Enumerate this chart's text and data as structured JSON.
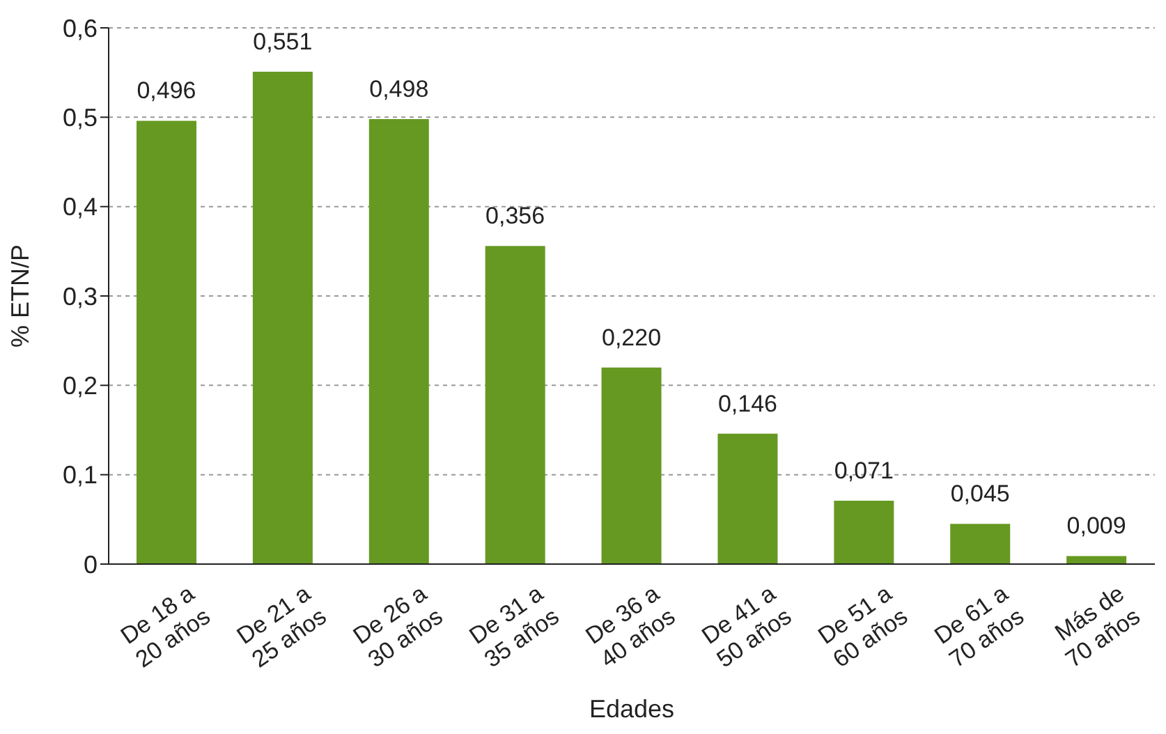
{
  "chart_data": {
    "type": "bar",
    "categories": [
      "De 18 a 20 años",
      "De 21 a 25 años",
      "De 26 a 30 años",
      "De 31 a 35 años",
      "De 36 a 40 años",
      "De 41 a 50 años",
      "De 51 a 60 años",
      "De 61 a 70 años",
      "Más de 70 años"
    ],
    "values": [
      0.496,
      0.551,
      0.498,
      0.356,
      0.22,
      0.146,
      0.071,
      0.045,
      0.009
    ],
    "value_labels": [
      "0,496",
      "0,551",
      "0,498",
      "0,356",
      "0,220",
      "0,146",
      "0,071",
      "0,045",
      "0,009"
    ],
    "color": "#669922",
    "xlabel": "Edades",
    "ylabel": "% ETN/P",
    "ylim": [
      0,
      0.6
    ],
    "yticks": [
      0,
      {
        "value": 0.1,
        "label": "0,1"
      },
      {
        "value": 0.2,
        "label": "0,2"
      },
      {
        "value": 0.3,
        "label": "0,3"
      },
      {
        "value": 0.4,
        "label": "0,4"
      },
      {
        "value": 0.5,
        "label": "0,5"
      },
      {
        "value": 0.6,
        "label": "0,6"
      }
    ],
    "grid": "y"
  }
}
